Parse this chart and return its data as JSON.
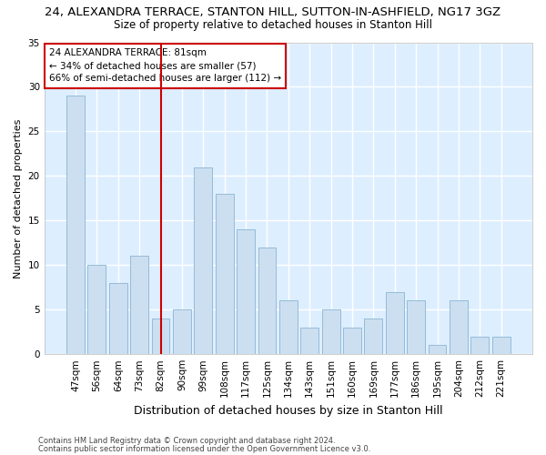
{
  "title_line1": "24, ALEXANDRA TERRACE, STANTON HILL, SUTTON-IN-ASHFIELD, NG17 3GZ",
  "title_line2": "Size of property relative to detached houses in Stanton Hill",
  "xlabel": "Distribution of detached houses by size in Stanton Hill",
  "ylabel": "Number of detached properties",
  "categories": [
    "47sqm",
    "56sqm",
    "64sqm",
    "73sqm",
    "82sqm",
    "90sqm",
    "99sqm",
    "108sqm",
    "117sqm",
    "125sqm",
    "134sqm",
    "143sqm",
    "151sqm",
    "160sqm",
    "169sqm",
    "177sqm",
    "186sqm",
    "195sqm",
    "204sqm",
    "212sqm",
    "221sqm"
  ],
  "values": [
    29,
    10,
    8,
    11,
    4,
    5,
    21,
    18,
    14,
    12,
    6,
    3,
    5,
    3,
    4,
    7,
    6,
    1,
    6,
    2,
    2
  ],
  "bar_color": "#ccdff0",
  "bar_edge_color": "#8ab4d4",
  "highlight_line_index": 4,
  "highlight_line_color": "#cc0000",
  "annotation_line1": "24 ALEXANDRA TERRACE: 81sqm",
  "annotation_line2": "← 34% of detached houses are smaller (57)",
  "annotation_line3": "66% of semi-detached houses are larger (112) →",
  "annotation_box_color": "#ffffff",
  "annotation_box_edge": "#cc0000",
  "ylim": [
    0,
    35
  ],
  "yticks": [
    0,
    5,
    10,
    15,
    20,
    25,
    30,
    35
  ],
  "footer_line1": "Contains HM Land Registry data © Crown copyright and database right 2024.",
  "footer_line2": "Contains public sector information licensed under the Open Government Licence v3.0.",
  "bg_color": "#ffffff",
  "plot_bg_color": "#ddeeff",
  "grid_color": "#ffffff",
  "title1_fontsize": 9.5,
  "title2_fontsize": 8.5,
  "xlabel_fontsize": 9,
  "ylabel_fontsize": 8,
  "tick_fontsize": 7.5,
  "annotation_fontsize": 7.5,
  "footer_fontsize": 6
}
